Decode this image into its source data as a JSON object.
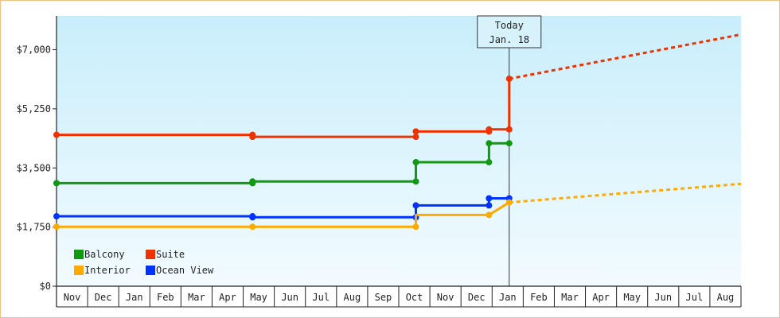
{
  "chart_data": {
    "type": "line",
    "title": "",
    "xlabel": "",
    "ylabel": "",
    "ylim": [
      0,
      8000
    ],
    "y_ticks": [
      "$7,000",
      "$5,250",
      "$3,500",
      "$1,750",
      "$0"
    ],
    "y_tick_values": [
      7000,
      5250,
      3500,
      1750,
      0
    ],
    "x_ticks": [
      "Nov",
      "Dec",
      "Jan",
      "Feb",
      "Mar",
      "Apr",
      "May",
      "Jun",
      "Jul",
      "Aug",
      "Sep",
      "Oct",
      "Nov",
      "Dec",
      "Jan",
      "Feb",
      "Mar",
      "Apr",
      "May",
      "Jun",
      "Jul",
      "Aug"
    ],
    "x_unit": "months since Nov (year 1)",
    "xlim": [
      0,
      22
    ],
    "grid": false,
    "legend_position": "bottom-left",
    "today": {
      "line1": "Today",
      "line2": "Jan. 18",
      "x": 14.55
    },
    "series": [
      {
        "name": "Suite",
        "color": "#ee3300",
        "points": [
          [
            0,
            4480
          ],
          [
            6.3,
            4480
          ],
          [
            6.3,
            4420
          ],
          [
            11.55,
            4420
          ],
          [
            11.55,
            4580
          ],
          [
            13.9,
            4580
          ],
          [
            13.9,
            4640
          ],
          [
            14.55,
            4640
          ],
          [
            14.55,
            6140
          ]
        ],
        "markers": [
          [
            0,
            4480
          ],
          [
            6.3,
            4480
          ],
          [
            6.3,
            4420
          ],
          [
            11.55,
            4420
          ],
          [
            11.55,
            4580
          ],
          [
            13.9,
            4580
          ],
          [
            13.9,
            4640
          ],
          [
            14.55,
            4640
          ],
          [
            14.55,
            6140
          ]
        ],
        "projection": [
          [
            14.55,
            6140
          ],
          [
            22,
            7450
          ]
        ]
      },
      {
        "name": "Balcony",
        "color": "#119911",
        "points": [
          [
            0,
            3050
          ],
          [
            6.3,
            3050
          ],
          [
            6.3,
            3100
          ],
          [
            11.55,
            3100
          ],
          [
            11.55,
            3670
          ],
          [
            13.9,
            3670
          ],
          [
            13.9,
            4230
          ],
          [
            14.55,
            4230
          ]
        ],
        "markers": [
          [
            0,
            3050
          ],
          [
            6.3,
            3050
          ],
          [
            6.3,
            3100
          ],
          [
            11.55,
            3100
          ],
          [
            11.55,
            3670
          ],
          [
            13.9,
            3670
          ],
          [
            13.9,
            4230
          ],
          [
            14.55,
            4230
          ]
        ],
        "projection": []
      },
      {
        "name": "Ocean View",
        "color": "#0033ff",
        "points": [
          [
            0,
            2070
          ],
          [
            6.3,
            2070
          ],
          [
            6.3,
            2040
          ],
          [
            11.55,
            2040
          ],
          [
            11.55,
            2390
          ],
          [
            13.9,
            2390
          ],
          [
            13.9,
            2600
          ],
          [
            14.55,
            2600
          ]
        ],
        "markers": [
          [
            0,
            2070
          ],
          [
            6.3,
            2070
          ],
          [
            6.3,
            2040
          ],
          [
            11.55,
            2040
          ],
          [
            11.55,
            2390
          ],
          [
            13.9,
            2390
          ],
          [
            13.9,
            2600
          ],
          [
            14.55,
            2600
          ]
        ],
        "projection": []
      },
      {
        "name": "Interior",
        "color": "#ffaa00",
        "points": [
          [
            0,
            1760
          ],
          [
            6.3,
            1760
          ],
          [
            6.3,
            1760
          ],
          [
            11.55,
            1760
          ],
          [
            11.55,
            2110
          ],
          [
            13.9,
            2110
          ],
          [
            14.55,
            2480
          ]
        ],
        "markers": [
          [
            0,
            1760
          ],
          [
            6.3,
            1760
          ],
          [
            11.55,
            1760
          ],
          [
            13.9,
            2110
          ],
          [
            14.55,
            2480
          ]
        ],
        "projection": [
          [
            14.55,
            2480
          ],
          [
            22,
            3030
          ]
        ]
      }
    ],
    "legend": [
      {
        "name": "Balcony",
        "color": "#119911"
      },
      {
        "name": "Suite",
        "color": "#ee3300"
      },
      {
        "name": "Interior",
        "color": "#ffaa00"
      },
      {
        "name": "Ocean View",
        "color": "#0033ff"
      }
    ],
    "colors": {
      "bg_top": "#c9eefb",
      "bg_bottom": "#f2fbff",
      "axis": "#222222",
      "frame": "#f0c080"
    }
  }
}
